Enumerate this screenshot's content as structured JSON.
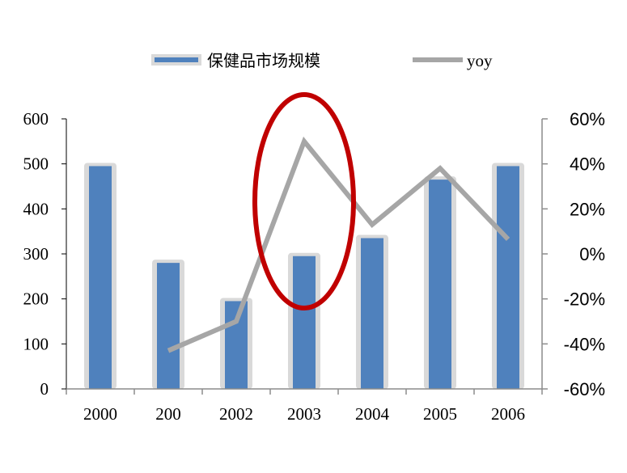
{
  "chart_data": {
    "type": "bar",
    "categories": [
      "2000",
      "200",
      "2002",
      "2003",
      "2004",
      "2005",
      "2006"
    ],
    "series": [
      {
        "name": "保健品市场规模",
        "type": "bar",
        "axis": "left",
        "values": [
          495,
          280,
          195,
          295,
          335,
          465,
          495
        ]
      },
      {
        "name": "yoy",
        "type": "line",
        "axis": "right",
        "values": [
          null,
          -0.43,
          -0.3,
          0.5,
          0.13,
          0.38,
          0.065
        ]
      }
    ],
    "y_left": {
      "ylim": [
        0,
        600
      ],
      "ticks": [
        0,
        100,
        200,
        300,
        400,
        500,
        600
      ],
      "tick_labels": [
        "0",
        "100",
        "200",
        "300",
        "400",
        "500",
        "600"
      ]
    },
    "y_right": {
      "ylim": [
        -0.6,
        0.6
      ],
      "ticks": [
        -0.6,
        -0.4,
        -0.2,
        0,
        0.2,
        0.4,
        0.6
      ],
      "tick_labels": [
        "-60%",
        "-40%",
        "-20%",
        "0%",
        "20%",
        "40%",
        "60%"
      ]
    },
    "legend": {
      "placement": "top",
      "entries": [
        "保健品市场规模",
        "yoy"
      ]
    },
    "annotation": {
      "type": "ellipse",
      "color": "#c00000",
      "target_category": "2003"
    },
    "colors": {
      "bar_fill": "#4f81bd",
      "bar_outline": "#d9d9d9",
      "line": "#a6a6a6",
      "axis": "#8c8c8c"
    },
    "grid": false
  }
}
